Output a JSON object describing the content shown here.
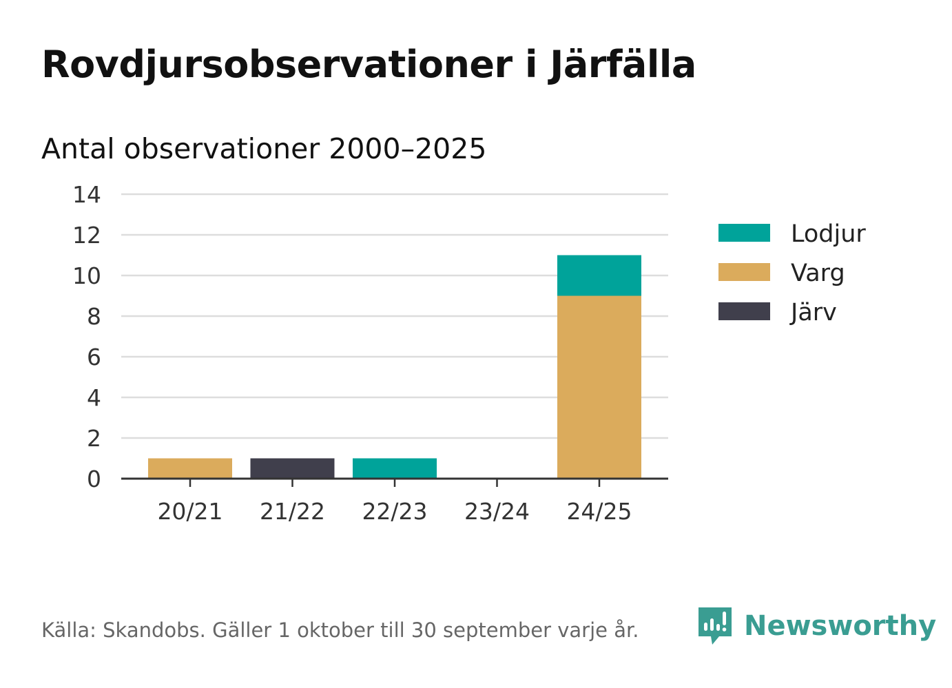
{
  "chart_data": {
    "type": "bar",
    "stacked": true,
    "title": "Rovdjursobservationer i Järfälla",
    "subtitle": "Antal observationer 2000–2025",
    "categories": [
      "20/21",
      "21/22",
      "22/23",
      "23/24",
      "24/25"
    ],
    "series": [
      {
        "name": "Järv",
        "color": "#403f4c",
        "values": [
          0,
          1,
          0,
          0,
          0
        ]
      },
      {
        "name": "Varg",
        "color": "#dbab5c",
        "values": [
          1,
          0,
          0,
          0,
          9
        ]
      },
      {
        "name": "Lodjur",
        "color": "#00a39a",
        "values": [
          0,
          0,
          1,
          0,
          2
        ]
      }
    ],
    "legend_order": [
      "Lodjur",
      "Varg",
      "Järv"
    ],
    "ylim": [
      0,
      14
    ],
    "yticks": [
      0,
      2,
      4,
      6,
      8,
      10,
      12,
      14
    ],
    "xlabel": "",
    "ylabel": "",
    "grid": true,
    "legend_position": "right"
  },
  "footer": {
    "source": "Källa: Skandobs. Gäller 1 oktober till 30 september varje år.",
    "brand": "Newsworthy"
  },
  "colors": {
    "grid": "#dddddd",
    "axis": "#333333",
    "brand": "#3a9d92"
  }
}
